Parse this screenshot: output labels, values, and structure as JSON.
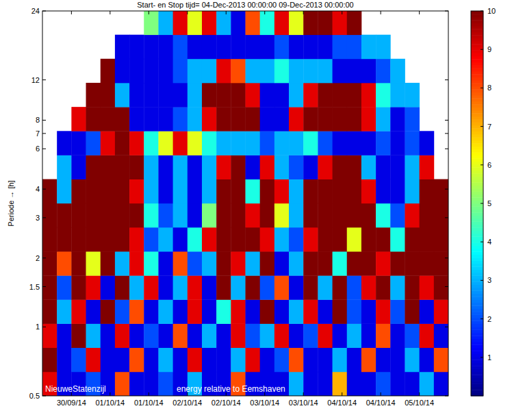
{
  "chart_data": {
    "type": "heatmap",
    "title": "Start- en Stop tijd= 04-Dec-2013 00:00:00 09-Dec-2013 00:00:00",
    "y_label": "Periode → [h]",
    "annotations": [
      "NieuweStatenzijl",
      "energy relative to Eemshaven"
    ],
    "log": "y",
    "xlim": [
      0,
      126
    ],
    "xticks": [
      {
        "value": 9,
        "label": "30/09/14"
      },
      {
        "value": 21,
        "label": "01/10/14"
      },
      {
        "value": 33,
        "label": "01/10/14"
      },
      {
        "value": 45,
        "label": "02/10/14"
      },
      {
        "value": 57,
        "label": "02/10/14"
      },
      {
        "value": 69,
        "label": "03/10/14"
      },
      {
        "value": 81,
        "label": "03/10/14"
      },
      {
        "value": 93,
        "label": "04/10/14"
      },
      {
        "value": 105,
        "label": "04/10/14"
      },
      {
        "value": 117,
        "label": "05/10/14"
      }
    ],
    "ylim": [
      0.5,
      24
    ],
    "yticks": [
      0.5,
      1,
      1.5,
      2,
      3,
      4,
      6,
      7,
      8,
      12,
      24
    ],
    "x_edges": [
      0,
      4.5,
      9,
      13.5,
      18,
      22.5,
      27,
      31.5,
      36,
      40.5,
      45,
      49.5,
      54,
      58.5,
      63,
      67.5,
      72,
      76.5,
      81,
      85.5,
      90,
      94.5,
      99,
      103.5,
      108,
      112.5,
      117,
      121.5,
      126
    ],
    "y_edges": [
      0.5,
      0.637,
      0.812,
      1.034,
      1.317,
      1.678,
      2.138,
      2.724,
      3.47,
      4.421,
      5.632,
      7.175,
      9.141,
      11.65,
      14.84,
      18.9,
      24
    ],
    "cells": [
      [
        9,
        1,
        1,
        2,
        1,
        8,
        1,
        1,
        2,
        1,
        3,
        1,
        1,
        8,
        1,
        1,
        1,
        3,
        1,
        1,
        7,
        1,
        1,
        2,
        1,
        1,
        3,
        1
      ],
      [
        10,
        1,
        2,
        9,
        1,
        1,
        8,
        1,
        3,
        1,
        9,
        1,
        1,
        3,
        9,
        1,
        2,
        8,
        1,
        1,
        3,
        1,
        8,
        1,
        1,
        3,
        1,
        8
      ],
      [
        9,
        1,
        10,
        3,
        1,
        9,
        1,
        2,
        1,
        8,
        1,
        3,
        1,
        9,
        2,
        3,
        9,
        1,
        2,
        9,
        1,
        3,
        1,
        8,
        1,
        2,
        9,
        1
      ],
      [
        10,
        3,
        9,
        1,
        10,
        2,
        8,
        1,
        3,
        1,
        9,
        1,
        4,
        9,
        1,
        10,
        1,
        3,
        9,
        1,
        10,
        2,
        1,
        9,
        2,
        10,
        1,
        9
      ],
      [
        10,
        2,
        10,
        9,
        1,
        10,
        3,
        9,
        1,
        3,
        9,
        1,
        10,
        3,
        10,
        2,
        8,
        1,
        10,
        3,
        10,
        2,
        9,
        10,
        3,
        10,
        9,
        10
      ],
      [
        10,
        8,
        10,
        6,
        10,
        3,
        9,
        4,
        1,
        8,
        2,
        3,
        10,
        9,
        3,
        10,
        1,
        3,
        10,
        10,
        4,
        10,
        10,
        9,
        10,
        10,
        10,
        10
      ],
      [
        10,
        10,
        10,
        10,
        10,
        10,
        9,
        2,
        3,
        1,
        4,
        9,
        10,
        10,
        10,
        9,
        3,
        2,
        9,
        10,
        10,
        6,
        10,
        10,
        4,
        10,
        10,
        10
      ],
      [
        10,
        10,
        10,
        10,
        10,
        10,
        10,
        4,
        2,
        3,
        1,
        5,
        10,
        10,
        9,
        10,
        6,
        3,
        10,
        10,
        10,
        10,
        10,
        4,
        2,
        9,
        10,
        10
      ],
      [
        10,
        3,
        10,
        10,
        10,
        10,
        9,
        3,
        1,
        3,
        1,
        3,
        10,
        10,
        4,
        10,
        9,
        3,
        10,
        10,
        10,
        10,
        9,
        1,
        1,
        3,
        10,
        10
      ],
      [
        null,
        3,
        1,
        10,
        10,
        10,
        10,
        3,
        1,
        3,
        1,
        3,
        9,
        10,
        1,
        9,
        3,
        2,
        1,
        9,
        10,
        10,
        3,
        1,
        1,
        3,
        9,
        null
      ],
      [
        null,
        1,
        1,
        2,
        9,
        10,
        9,
        4,
        6,
        9,
        6,
        4,
        3,
        3,
        3,
        2,
        3,
        3,
        4,
        2,
        1,
        1,
        1,
        2,
        1,
        2,
        1,
        null
      ],
      [
        null,
        null,
        9,
        10,
        10,
        10,
        1,
        1,
        1,
        2,
        3,
        9,
        10,
        10,
        10,
        1,
        1,
        9,
        10,
        10,
        10,
        10,
        9,
        3,
        1,
        2,
        null,
        null
      ],
      [
        null,
        null,
        null,
        10,
        10,
        3,
        1,
        1,
        1,
        1,
        3,
        10,
        10,
        10,
        9,
        1,
        1,
        3,
        9,
        10,
        10,
        10,
        9,
        4,
        3,
        3,
        null,
        null
      ],
      [
        null,
        null,
        null,
        null,
        10,
        1,
        1,
        1,
        1,
        2,
        3,
        3,
        9,
        8,
        3,
        3,
        4,
        3,
        3,
        3,
        1,
        1,
        1,
        2,
        3,
        null,
        null,
        null
      ],
      [
        null,
        null,
        null,
        null,
        null,
        1,
        1,
        1,
        1,
        2,
        1,
        1,
        1,
        1,
        1,
        1,
        2,
        1,
        1,
        1,
        2,
        2,
        3,
        3,
        null,
        null,
        null,
        null
      ],
      [
        null,
        null,
        null,
        null,
        null,
        null,
        null,
        5,
        3,
        9,
        6,
        9,
        3,
        1,
        8,
        4,
        9,
        6,
        10,
        10,
        9,
        10,
        null,
        null,
        null,
        null,
        null,
        null
      ]
    ],
    "colorbar": {
      "range": [
        0,
        10
      ],
      "ticks": [
        1,
        2,
        3,
        4,
        5,
        6,
        7,
        8,
        9,
        10
      ]
    }
  }
}
